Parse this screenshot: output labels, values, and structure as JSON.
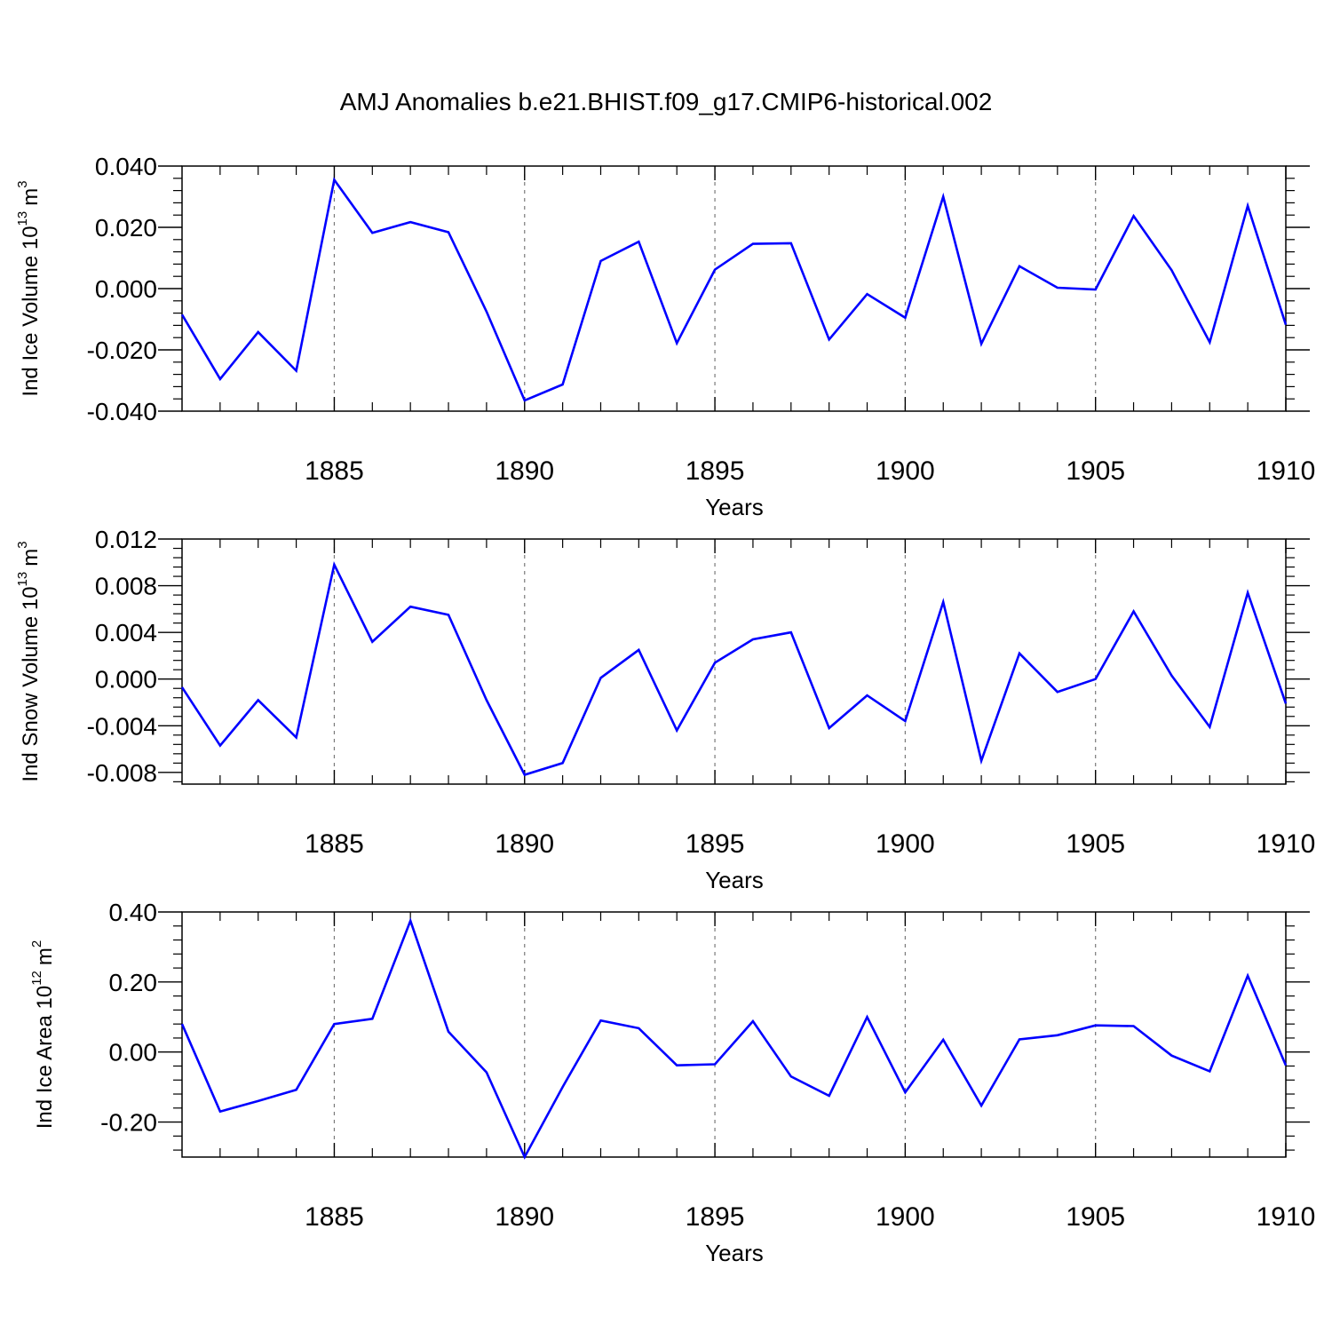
{
  "title": "AMJ Anomalies b.e21.BHIST.f09_g17.CMIP6-historical.002",
  "chart_data": [
    {
      "type": "line",
      "ylabel": {
        "text": "Ind Ice Volume 10",
        "exponent": "13",
        "unit": "m",
        "unit_exponent": "3"
      },
      "xlabel": "Years",
      "x_ticks": [
        "1885",
        "1890",
        "1895",
        "1900",
        "1905",
        "1910"
      ],
      "y_ticks": [
        "-0.040",
        "-0.020",
        "0.000",
        "0.020",
        "0.040"
      ],
      "ylim": [
        -0.04,
        0.04
      ],
      "xlim": [
        1881,
        1910
      ],
      "line_color": "#0000ff",
      "grid": "vertical dashed at major x ticks",
      "series": [
        {
          "x": [
            1881,
            1882,
            1883,
            1884,
            1885,
            1886,
            1887,
            1888,
            1889,
            1890,
            1891,
            1892,
            1893,
            1894,
            1895,
            1896,
            1897,
            1898,
            1899,
            1900,
            1901,
            1902,
            1903,
            1904,
            1905,
            1906,
            1907,
            1908,
            1909,
            1910
          ],
          "values": [
            -0.0085,
            -0.0295,
            -0.0142,
            -0.0268,
            0.0355,
            0.0182,
            0.0217,
            0.0184,
            -0.0075,
            -0.0365,
            -0.0313,
            0.009,
            0.0153,
            -0.0178,
            0.0062,
            0.0146,
            0.0148,
            -0.0166,
            -0.0018,
            -0.0095,
            0.03,
            -0.018,
            0.0073,
            0.0003,
            -0.0003,
            0.0237,
            0.006,
            -0.0175,
            0.027,
            -0.0118
          ]
        }
      ]
    },
    {
      "type": "line",
      "ylabel": {
        "text": "Ind Snow Volume 10",
        "exponent": "13",
        "unit": "m",
        "unit_exponent": "3"
      },
      "xlabel": "Years",
      "x_ticks": [
        "1885",
        "1890",
        "1895",
        "1900",
        "1905",
        "1910"
      ],
      "y_ticks": [
        "-0.008",
        "-0.004",
        "0.000",
        "0.004",
        "0.008",
        "0.012"
      ],
      "ylim": [
        -0.009,
        0.012
      ],
      "xlim": [
        1881,
        1910
      ],
      "line_color": "#0000ff",
      "grid": "vertical dashed at major x ticks",
      "series": [
        {
          "x": [
            1881,
            1882,
            1883,
            1884,
            1885,
            1886,
            1887,
            1888,
            1889,
            1890,
            1891,
            1892,
            1893,
            1894,
            1895,
            1896,
            1897,
            1898,
            1899,
            1900,
            1901,
            1902,
            1903,
            1904,
            1905,
            1906,
            1907,
            1908,
            1909,
            1910
          ],
          "values": [
            -0.0007,
            -0.0057,
            -0.0018,
            -0.005,
            0.0098,
            0.0032,
            0.0062,
            0.0055,
            -0.0018,
            -0.0082,
            -0.0072,
            0.0001,
            0.0025,
            -0.0044,
            0.0014,
            0.0034,
            0.004,
            -0.0042,
            -0.0014,
            -0.0036,
            0.0066,
            -0.007,
            0.0022,
            -0.0011,
            0.0,
            0.0058,
            0.0003,
            -0.0041,
            0.0074,
            -0.0021
          ]
        }
      ]
    },
    {
      "type": "line",
      "ylabel": {
        "text": "Ind Ice Area 10",
        "exponent": "12",
        "unit": "m",
        "unit_exponent": "2"
      },
      "xlabel": "Years",
      "x_ticks": [
        "1885",
        "1890",
        "1895",
        "1900",
        "1905",
        "1910"
      ],
      "y_ticks": [
        "-0.20",
        "0.00",
        "0.20",
        "0.40"
      ],
      "ylim": [
        -0.3,
        0.4
      ],
      "xlim": [
        1881,
        1910
      ],
      "line_color": "#0000ff",
      "grid": "vertical dashed at major x ticks",
      "series": [
        {
          "x": [
            1881,
            1882,
            1883,
            1884,
            1885,
            1886,
            1887,
            1888,
            1889,
            1890,
            1891,
            1892,
            1893,
            1894,
            1895,
            1896,
            1897,
            1898,
            1899,
            1900,
            1901,
            1902,
            1903,
            1904,
            1905,
            1906,
            1907,
            1908,
            1909,
            1910
          ],
          "values": [
            0.08,
            -0.17,
            -0.14,
            -0.108,
            0.08,
            0.095,
            0.375,
            0.058,
            -0.058,
            -0.3,
            -0.1,
            0.09,
            0.068,
            -0.038,
            -0.035,
            0.088,
            -0.07,
            -0.125,
            0.1,
            -0.115,
            0.035,
            -0.153,
            0.036,
            0.048,
            0.076,
            0.074,
            -0.01,
            -0.055,
            0.218,
            -0.038
          ]
        }
      ]
    }
  ]
}
